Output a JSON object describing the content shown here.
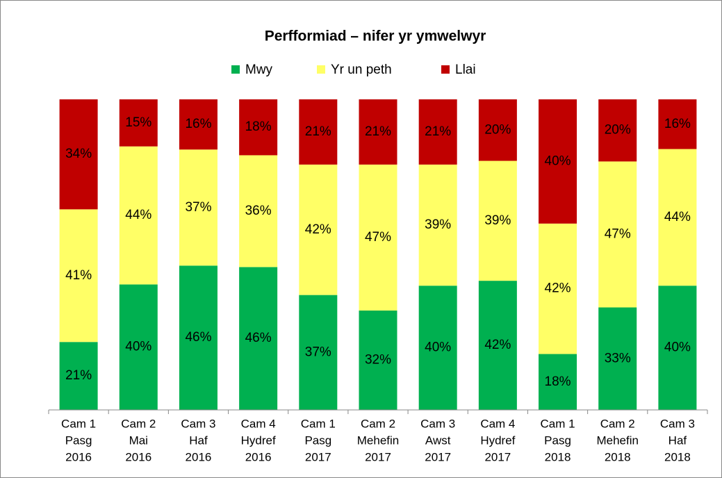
{
  "chart_data": {
    "type": "bar",
    "stacked": "percent",
    "title": "Perfformiad – nifer yr ymwelwyr",
    "categories": [
      [
        "Cam 1",
        "Pasg",
        "2016"
      ],
      [
        "Cam 2",
        "Mai",
        "2016"
      ],
      [
        "Cam 3",
        "Haf",
        "2016"
      ],
      [
        "Cam 4",
        "Hydref",
        "2016"
      ],
      [
        "Cam 1",
        "Pasg",
        "2017"
      ],
      [
        "Cam 2",
        "Mehefin",
        "2017"
      ],
      [
        "Cam 3",
        "Awst",
        "2017"
      ],
      [
        "Cam 4",
        "Hydref",
        "2017"
      ],
      [
        "Cam 1",
        "Pasg",
        "2018"
      ],
      [
        "Cam 2",
        "Mehefin",
        "2018"
      ],
      [
        "Cam 3",
        "Haf",
        "2018"
      ]
    ],
    "series": [
      {
        "name": "Mwy",
        "color": "#00b050",
        "values": [
          21,
          40,
          46,
          46,
          37,
          32,
          40,
          42,
          18,
          33,
          40
        ],
        "value_labels": [
          "21%",
          "40%",
          "46%",
          "46%",
          "37%",
          "32%",
          "40%",
          "42%",
          "18%",
          "33%",
          "40%"
        ]
      },
      {
        "name": "Yr un peth",
        "color": "#ffff66",
        "values": [
          41,
          44,
          37,
          36,
          42,
          47,
          39,
          39,
          42,
          47,
          44
        ],
        "value_labels": [
          "41%",
          "44%",
          "37%",
          "36%",
          "42%",
          "47%",
          "39%",
          "39%",
          "42%",
          "47%",
          "44%"
        ]
      },
      {
        "name": "Llai",
        "color": "#c00000",
        "values": [
          34,
          15,
          16,
          18,
          21,
          21,
          21,
          20,
          40,
          20,
          16
        ],
        "value_labels": [
          "34%",
          "15%",
          "16%",
          "18%",
          "21%",
          "21%",
          "21%",
          "20%",
          "40%",
          "20%",
          "16%"
        ]
      }
    ],
    "legend": "top"
  }
}
